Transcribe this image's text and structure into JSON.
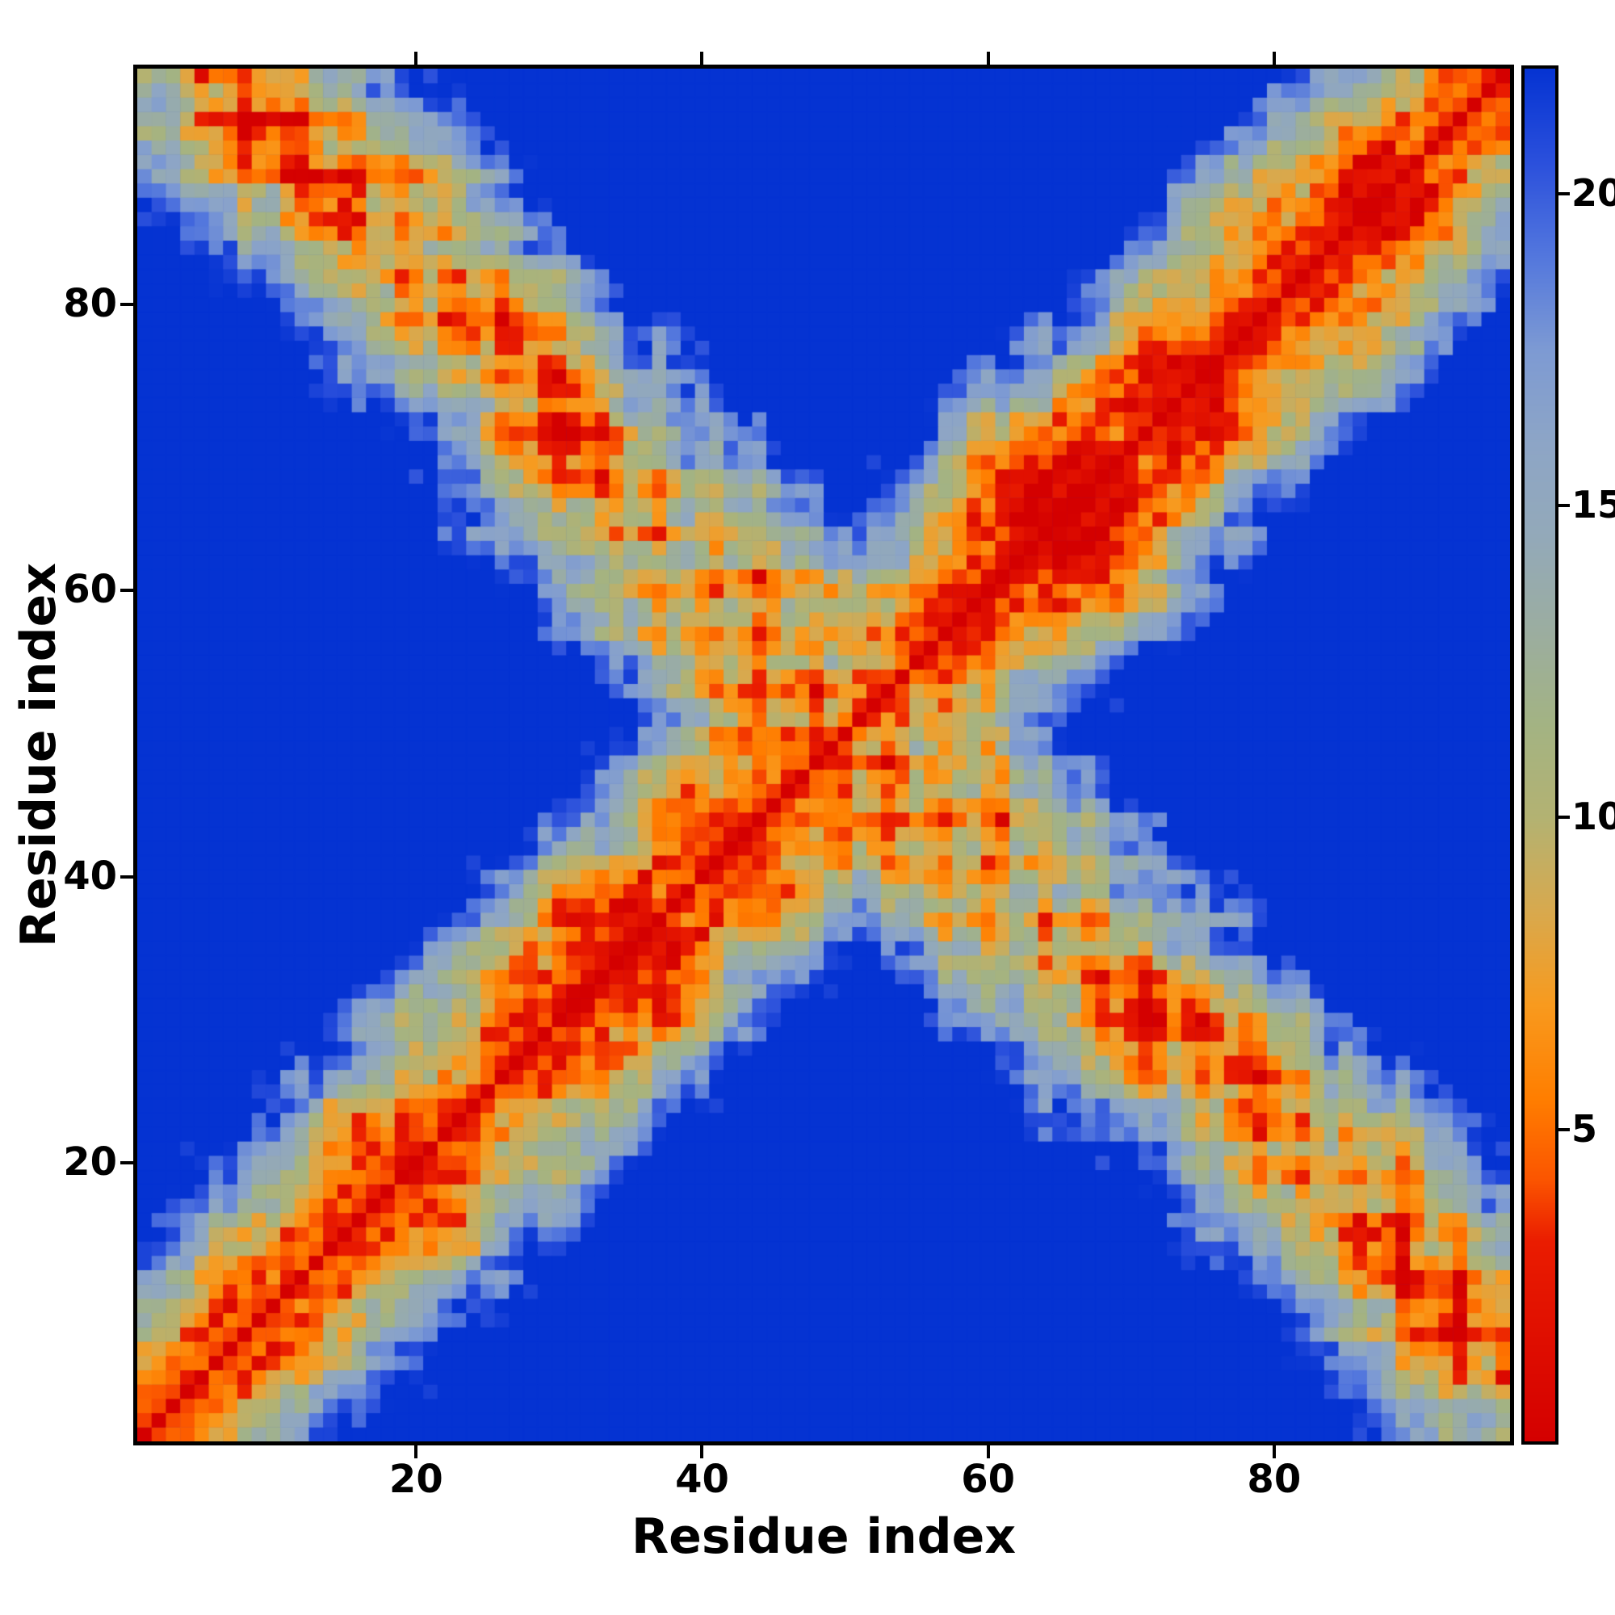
{
  "figure": {
    "background": "#ffffff"
  },
  "chart_data": {
    "type": "heatmap",
    "title": "",
    "xlabel": "Residue index",
    "ylabel": "Residue index",
    "x_ticks": [
      20,
      40,
      60,
      80
    ],
    "y_ticks": [
      20,
      40,
      60,
      80
    ],
    "axis_range": [
      0.5,
      96.5
    ],
    "n_residues": 96,
    "grid": false,
    "description": "Symmetric residue-residue distance map of a ~96-residue protein. Red diagonal (short distances), alpha-helical stripes parallel to the diagonal, and a broad anti-diagonal contact band forming an X pattern; far pairs saturate to deep blue.",
    "colorbar": {
      "position": "right",
      "ticks": [
        5,
        10,
        15,
        20
      ],
      "range": [
        0,
        22
      ]
    },
    "colormap_stops": [
      [
        0.0,
        "#d40000"
      ],
      [
        3.2,
        "#ea1c00"
      ],
      [
        4.2,
        "#fb5500"
      ],
      [
        5.5,
        "#ff7e00"
      ],
      [
        7.0,
        "#f89a1e"
      ],
      [
        8.5,
        "#d8a94e"
      ],
      [
        10.0,
        "#b3b272"
      ],
      [
        11.5,
        "#a3b383"
      ],
      [
        13.0,
        "#9bada0"
      ],
      [
        14.5,
        "#93a9b9"
      ],
      [
        16.0,
        "#8da5c6"
      ],
      [
        17.5,
        "#7d9ad3"
      ],
      [
        19.0,
        "#5377dd"
      ],
      [
        20.5,
        "#2b50dc"
      ],
      [
        22.0,
        "#0533d2"
      ]
    ],
    "model": {
      "seed": 7.3,
      "turn_residue": 50,
      "rise": 1.5,
      "arm_separation": 9.2,
      "helix_radius": 2.3,
      "helix_turn_deg": 100,
      "jitter": 0.9,
      "cell_noise": 2.2,
      "patch_noise": 2.6,
      "contact_blobs": [
        [
          12,
          86,
          6,
          4
        ],
        [
          8,
          91,
          5,
          3
        ],
        [
          27,
          79,
          5,
          4
        ],
        [
          30,
          69,
          6,
          4
        ],
        [
          23,
          62,
          5,
          3
        ],
        [
          33,
          57,
          5,
          3
        ],
        [
          28,
          37,
          6,
          4
        ],
        [
          19,
          30,
          5,
          3
        ],
        [
          40,
          51,
          5,
          3
        ],
        [
          61,
          70,
          7,
          4
        ],
        [
          57,
          64,
          6,
          3
        ],
        [
          70,
          78,
          5,
          3
        ],
        [
          45,
          59,
          4,
          3
        ],
        [
          36,
          45,
          5,
          3
        ],
        [
          83,
          90,
          4,
          3
        ],
        [
          14,
          22,
          4,
          3
        ],
        [
          75,
          86,
          5,
          3
        ],
        [
          20,
          88,
          5,
          3
        ]
      ]
    }
  }
}
